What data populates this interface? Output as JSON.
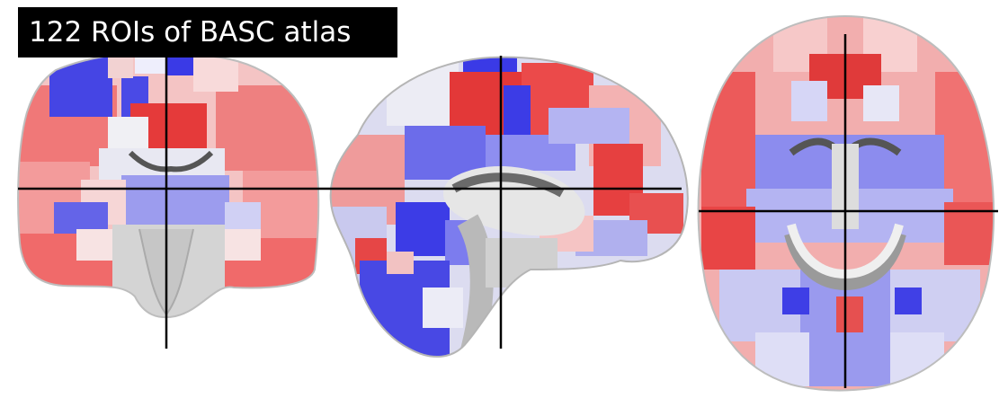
{
  "figure": {
    "title": "122 ROIs of BASC atlas",
    "views": [
      {
        "name": "coronal"
      },
      {
        "name": "sagittal"
      },
      {
        "name": "axial"
      }
    ],
    "palette": {
      "deep_red": "#e8383a",
      "red": "#f07070",
      "light_red": "#f6b2b2",
      "pale_red": "#fbdada",
      "white": "#f6f1f1",
      "pale_blue": "#dcdcf6",
      "light_blue": "#b6b6f2",
      "blue": "#8a8af0",
      "deep_blue": "#3e3ee6",
      "gray": "#bdbdbd",
      "dark_gray": "#6a6a6a",
      "crosshair": "#000000"
    }
  }
}
